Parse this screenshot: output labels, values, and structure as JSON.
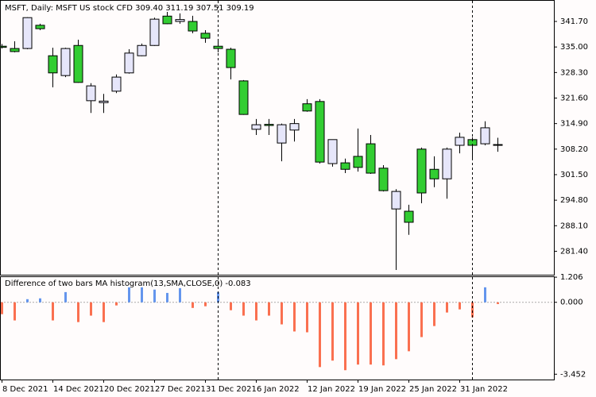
{
  "chart_data": [
    {
      "type": "candlestick",
      "title": "MSFT, Daily:  MSFT US stock CFD  309.40 311.19 307.51 309.19",
      "categories": [
        "8 Dec 2021",
        null,
        null,
        null,
        "14 Dec 2021",
        null,
        null,
        null,
        "20 Dec 2021",
        null,
        null,
        null,
        "27 Dec 2021",
        null,
        null,
        null,
        "31 Dec 2021",
        null,
        null,
        null,
        "6 Jan 2022",
        null,
        null,
        null,
        "12 Jan 2022",
        null,
        null,
        null,
        "19 Jan 2022",
        null,
        null,
        null,
        "25 Jan 2022",
        null,
        null,
        null,
        "31 Jan 2022",
        null,
        null,
        null
      ],
      "open": [
        335.2,
        334.6,
        334.6,
        340.7,
        332.7,
        327.5,
        335.4,
        320.9,
        320.4,
        323.4,
        328.2,
        332.7,
        335.4,
        343.1,
        341.7,
        341.7,
        338.6,
        335.2,
        334.4,
        326.1,
        313.4,
        314.7,
        309.8,
        313.2,
        320.1,
        320.7,
        304.4,
        304.6,
        306.3,
        309.6,
        303.2,
        292.5,
        291.9,
        308.2,
        302.9,
        300.4,
        309.2,
        310.7,
        309.6,
        309.4
      ],
      "high": [
        335.8,
        336.5,
        342.8,
        341.1,
        334.8,
        334.8,
        336.9,
        325.5,
        322.7,
        327.8,
        334.4,
        335.9,
        342.7,
        344.2,
        343.8,
        343.2,
        339.4,
        336.5,
        334.8,
        326.3,
        316.1,
        316.1,
        314.9,
        316.1,
        321.3,
        321.3,
        310.7,
        305.7,
        313.6,
        311.9,
        304.0,
        297.7,
        293.6,
        308.6,
        306.3,
        308.6,
        312.5,
        311.3,
        315.5,
        311.19
      ],
      "low": [
        334.6,
        333.6,
        334.4,
        339.4,
        324.4,
        327.1,
        325.6,
        317.7,
        317.7,
        322.9,
        328.0,
        332.6,
        335.3,
        341.0,
        341.1,
        338.6,
        336.1,
        333.6,
        326.5,
        317.2,
        311.9,
        311.9,
        305.0,
        310.2,
        318.0,
        304.4,
        303.6,
        301.9,
        302.3,
        301.7,
        297.1,
        276.5,
        285.7,
        294.0,
        298.2,
        295.2,
        307.1,
        305.7,
        309.2,
        307.51
      ],
      "close": [
        334.9,
        333.8,
        342.7,
        339.8,
        328.2,
        334.6,
        325.7,
        324.8,
        320.8,
        327.1,
        333.4,
        335.4,
        342.3,
        341.1,
        342.2,
        339.2,
        337.3,
        334.6,
        329.6,
        317.3,
        314.6,
        314.4,
        314.6,
        314.9,
        318.2,
        304.8,
        310.7,
        302.9,
        303.4,
        301.9,
        297.3,
        297.1,
        289.0,
        296.7,
        300.4,
        308.2,
        311.3,
        309.2,
        313.8,
        309.19
      ],
      "up_color": "#e6e6fa",
      "down_color": "#32cd32",
      "ylim": [
        275.45,
        347.12
      ],
      "yticks": [
        {
          "value": 341.7,
          "label": "341.70"
        },
        {
          "value": 335,
          "label": "335.00"
        },
        {
          "value": 328.3,
          "label": "328.30"
        },
        {
          "value": 321.6,
          "label": "321.60"
        },
        {
          "value": 314.9,
          "label": "314.90"
        },
        {
          "value": 308.2,
          "label": "308.20"
        },
        {
          "value": 301.5,
          "label": "301.50"
        },
        {
          "value": 294.8,
          "label": "294.80"
        },
        {
          "value": 288.1,
          "label": "288.10"
        },
        {
          "value": 281.4,
          "label": "281.40"
        }
      ]
    },
    {
      "type": "histogram_bar",
      "title": "Difference of two bars MA histogram(13,SMA,CLOSE,0) -0.083",
      "values": [
        -0.57,
        -0.87,
        0.15,
        0.19,
        -0.87,
        0.49,
        -0.95,
        -0.64,
        -0.95,
        -0.15,
        0.72,
        0.72,
        0.61,
        0.45,
        0.68,
        -0.27,
        -0.19,
        0.49,
        -0.38,
        -0.64,
        -0.87,
        -0.64,
        -1.06,
        -1.4,
        -1.44,
        -3.11,
        -2.8,
        -3.26,
        -2.99,
        -2.99,
        -3.03,
        -2.73,
        -2.35,
        -1.67,
        -1.14,
        -0.49,
        -0.34,
        -0.72,
        0.72,
        -0.083
      ],
      "positive_color": "#6495ed",
      "negative_color": "#fa7050",
      "ylim": [
        -3.67,
        1.21
      ],
      "yticks": [
        {
          "value": 1.206,
          "label": "1.206"
        },
        {
          "value": 0,
          "label": "0.000"
        },
        {
          "value": -3.452,
          "label": "-3.452"
        }
      ]
    }
  ]
}
